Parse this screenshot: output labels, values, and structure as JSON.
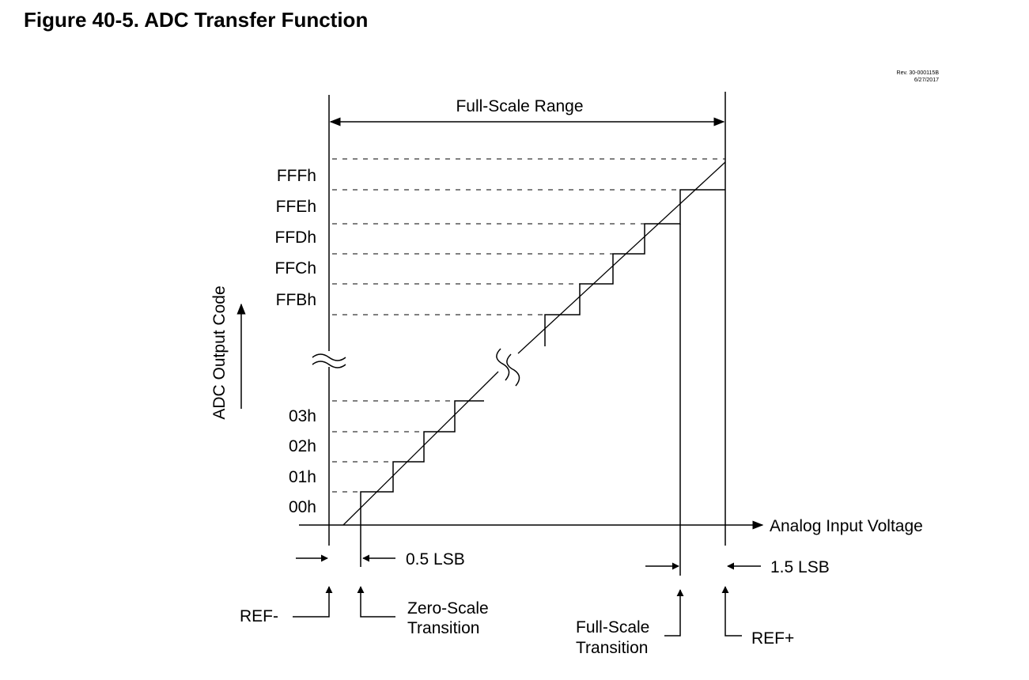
{
  "title": "Figure 40-5. ADC Transfer Function",
  "revision": {
    "line1": "Rev. 30-000115B",
    "line2": "6/27/2017"
  },
  "labels": {
    "full_scale_range": "Full-Scale Range",
    "y_axis": "ADC Output Code",
    "x_axis": "Analog Input Voltage",
    "half_lsb": "0.5 LSB",
    "one_half_lsb": "1.5 LSB",
    "ref_minus": "REF-",
    "ref_plus": "REF+",
    "zero_scale_1": "Zero-Scale",
    "zero_scale_2": "Transition",
    "full_scale_1": "Full-Scale",
    "full_scale_2": "Transition"
  },
  "codes_high": [
    "FFFh",
    "FFEh",
    "FFDh",
    "FFCh",
    "FFBh"
  ],
  "codes_low": [
    "03h",
    "02h",
    "01h",
    "00h"
  ],
  "colors": {
    "line": "#000000",
    "background": "#ffffff"
  }
}
